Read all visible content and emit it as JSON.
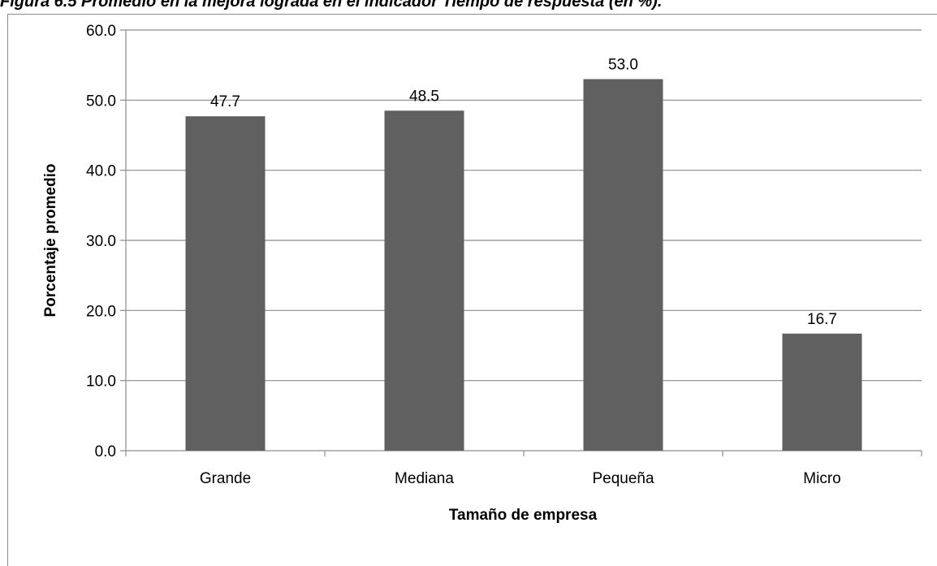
{
  "title": "Figura 6.5 Promedio en la mejora lograda en el indicador Tiempo de respuesta (en %).",
  "chart_data": {
    "type": "bar",
    "categories": [
      "Grande",
      "Mediana",
      "Pequeña",
      "Micro"
    ],
    "values": [
      47.7,
      48.5,
      53.0,
      16.7
    ],
    "value_labels": [
      "47.7",
      "48.5",
      "53.0",
      "16.7"
    ],
    "xlabel": "Tamaño de empresa",
    "ylabel": "Porcentaje promedio",
    "ylim": [
      0,
      60
    ],
    "yticks": [
      "0.0",
      "10.0",
      "20.0",
      "30.0",
      "40.0",
      "50.0",
      "60.0"
    ],
    "grid": true,
    "legend": "none",
    "bar_color": "#606060",
    "grid_color": "#8c8c8c"
  }
}
